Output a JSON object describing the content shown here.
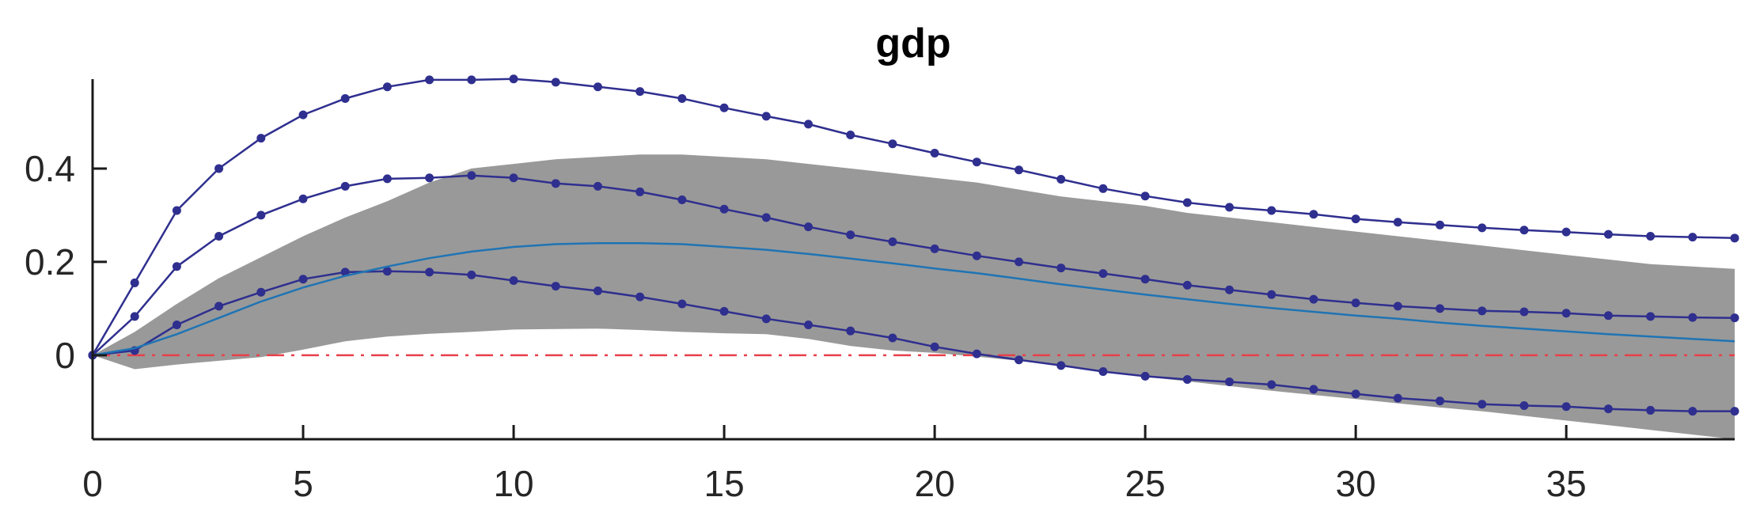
{
  "chart_data": {
    "type": "line",
    "title": "gdp",
    "xlabel": "",
    "ylabel": "",
    "xlim": [
      0,
      39
    ],
    "ylim": [
      -0.18,
      0.6
    ],
    "x_ticks": [
      0,
      5,
      10,
      15,
      20,
      25,
      30,
      35
    ],
    "y_ticks": [
      0,
      0.2,
      0.4
    ],
    "x_tick_labels": [
      "0",
      "5",
      "10",
      "15",
      "20",
      "25",
      "30",
      "35"
    ],
    "y_tick_labels": [
      "0",
      "0.2",
      "0.4"
    ],
    "grid": false,
    "legend": "none",
    "zero_line": {
      "y": 0,
      "color": "#e8404a",
      "style": "dash-dot"
    },
    "band": {
      "color": "#999999",
      "x": [
        0,
        1,
        2,
        3,
        4,
        5,
        6,
        7,
        8,
        9,
        10,
        11,
        12,
        13,
        14,
        15,
        16,
        17,
        18,
        19,
        20,
        21,
        22,
        23,
        24,
        25,
        26,
        27,
        28,
        29,
        30,
        31,
        32,
        33,
        34,
        35,
        36,
        37,
        38,
        39
      ],
      "lower": [
        0,
        -0.03,
        -0.02,
        -0.012,
        -0.004,
        0.012,
        0.03,
        0.04,
        0.046,
        0.05,
        0.055,
        0.056,
        0.057,
        0.054,
        0.05,
        0.047,
        0.045,
        0.035,
        0.02,
        0.01,
        0.005,
        -0.003,
        -0.012,
        -0.023,
        -0.035,
        -0.046,
        -0.056,
        -0.066,
        -0.076,
        -0.085,
        -0.094,
        -0.103,
        -0.112,
        -0.12,
        -0.13,
        -0.14,
        -0.15,
        -0.16,
        -0.17,
        -0.18
      ],
      "upper": [
        0,
        0.05,
        0.11,
        0.165,
        0.21,
        0.255,
        0.295,
        0.33,
        0.37,
        0.4,
        0.41,
        0.42,
        0.425,
        0.43,
        0.43,
        0.425,
        0.42,
        0.41,
        0.4,
        0.39,
        0.38,
        0.37,
        0.355,
        0.34,
        0.33,
        0.32,
        0.305,
        0.295,
        0.285,
        0.275,
        0.265,
        0.255,
        0.245,
        0.235,
        0.225,
        0.215,
        0.205,
        0.195,
        0.19,
        0.185
      ]
    },
    "series": [
      {
        "color": "#2f2f8f",
        "markers": true,
        "x": [
          0,
          1,
          2,
          3,
          4,
          5,
          6,
          7,
          8,
          9,
          10,
          11,
          12,
          13,
          14,
          15,
          16,
          17,
          18,
          19,
          20,
          21,
          22,
          23,
          24,
          25,
          26,
          27,
          28,
          29,
          30,
          31,
          32,
          33,
          34,
          35,
          36,
          37,
          38,
          39
        ],
        "values": [
          0,
          0.155,
          0.31,
          0.4,
          0.465,
          0.515,
          0.55,
          0.575,
          0.59,
          0.59,
          0.592,
          0.585,
          0.575,
          0.565,
          0.55,
          0.53,
          0.512,
          0.495,
          0.472,
          0.453,
          0.433,
          0.414,
          0.397,
          0.377,
          0.357,
          0.341,
          0.327,
          0.317,
          0.31,
          0.302,
          0.292,
          0.285,
          0.279,
          0.273,
          0.268,
          0.264,
          0.259,
          0.255,
          0.253,
          0.251
        ]
      },
      {
        "color": "#2f2f8f",
        "markers": true,
        "x": [
          0,
          1,
          2,
          3,
          4,
          5,
          6,
          7,
          8,
          9,
          10,
          11,
          12,
          13,
          14,
          15,
          16,
          17,
          18,
          19,
          20,
          21,
          22,
          23,
          24,
          25,
          26,
          27,
          28,
          29,
          30,
          31,
          32,
          33,
          34,
          35,
          36,
          37,
          38,
          39
        ],
        "values": [
          0,
          0.083,
          0.19,
          0.255,
          0.3,
          0.335,
          0.362,
          0.378,
          0.38,
          0.385,
          0.38,
          0.368,
          0.362,
          0.35,
          0.333,
          0.313,
          0.295,
          0.275,
          0.258,
          0.243,
          0.228,
          0.213,
          0.2,
          0.187,
          0.175,
          0.163,
          0.15,
          0.14,
          0.13,
          0.12,
          0.112,
          0.105,
          0.1,
          0.095,
          0.093,
          0.09,
          0.085,
          0.083,
          0.081,
          0.08
        ]
      },
      {
        "color": "#2f2f8f",
        "markers": true,
        "x": [
          0,
          1,
          2,
          3,
          4,
          5,
          6,
          7,
          8,
          9,
          10,
          11,
          12,
          13,
          14,
          15,
          16,
          17,
          18,
          19,
          20,
          21,
          22,
          23,
          24,
          25,
          26,
          27,
          28,
          29,
          30,
          31,
          32,
          33,
          34,
          35,
          36,
          37,
          38,
          39
        ],
        "values": [
          0,
          0.01,
          0.065,
          0.105,
          0.135,
          0.163,
          0.178,
          0.18,
          0.178,
          0.172,
          0.16,
          0.148,
          0.138,
          0.125,
          0.11,
          0.094,
          0.078,
          0.065,
          0.052,
          0.037,
          0.018,
          0.003,
          -0.01,
          -0.022,
          -0.035,
          -0.045,
          -0.052,
          -0.057,
          -0.063,
          -0.073,
          -0.083,
          -0.092,
          -0.098,
          -0.105,
          -0.108,
          -0.11,
          -0.115,
          -0.118,
          -0.12,
          -0.12
        ]
      },
      {
        "color": "#1f74b4",
        "markers": false,
        "x": [
          0,
          1,
          2,
          3,
          4,
          5,
          6,
          7,
          8,
          9,
          10,
          11,
          12,
          13,
          14,
          15,
          16,
          17,
          18,
          19,
          20,
          21,
          22,
          23,
          24,
          25,
          26,
          27,
          28,
          29,
          30,
          31,
          32,
          33,
          34,
          35,
          36,
          37,
          38,
          39
        ],
        "values": [
          0,
          0.015,
          0.045,
          0.08,
          0.115,
          0.145,
          0.17,
          0.19,
          0.208,
          0.222,
          0.232,
          0.238,
          0.24,
          0.24,
          0.238,
          0.232,
          0.226,
          0.217,
          0.207,
          0.197,
          0.186,
          0.176,
          0.164,
          0.152,
          0.141,
          0.13,
          0.12,
          0.11,
          0.101,
          0.093,
          0.085,
          0.078,
          0.07,
          0.063,
          0.057,
          0.051,
          0.045,
          0.04,
          0.035,
          0.03
        ]
      }
    ]
  }
}
